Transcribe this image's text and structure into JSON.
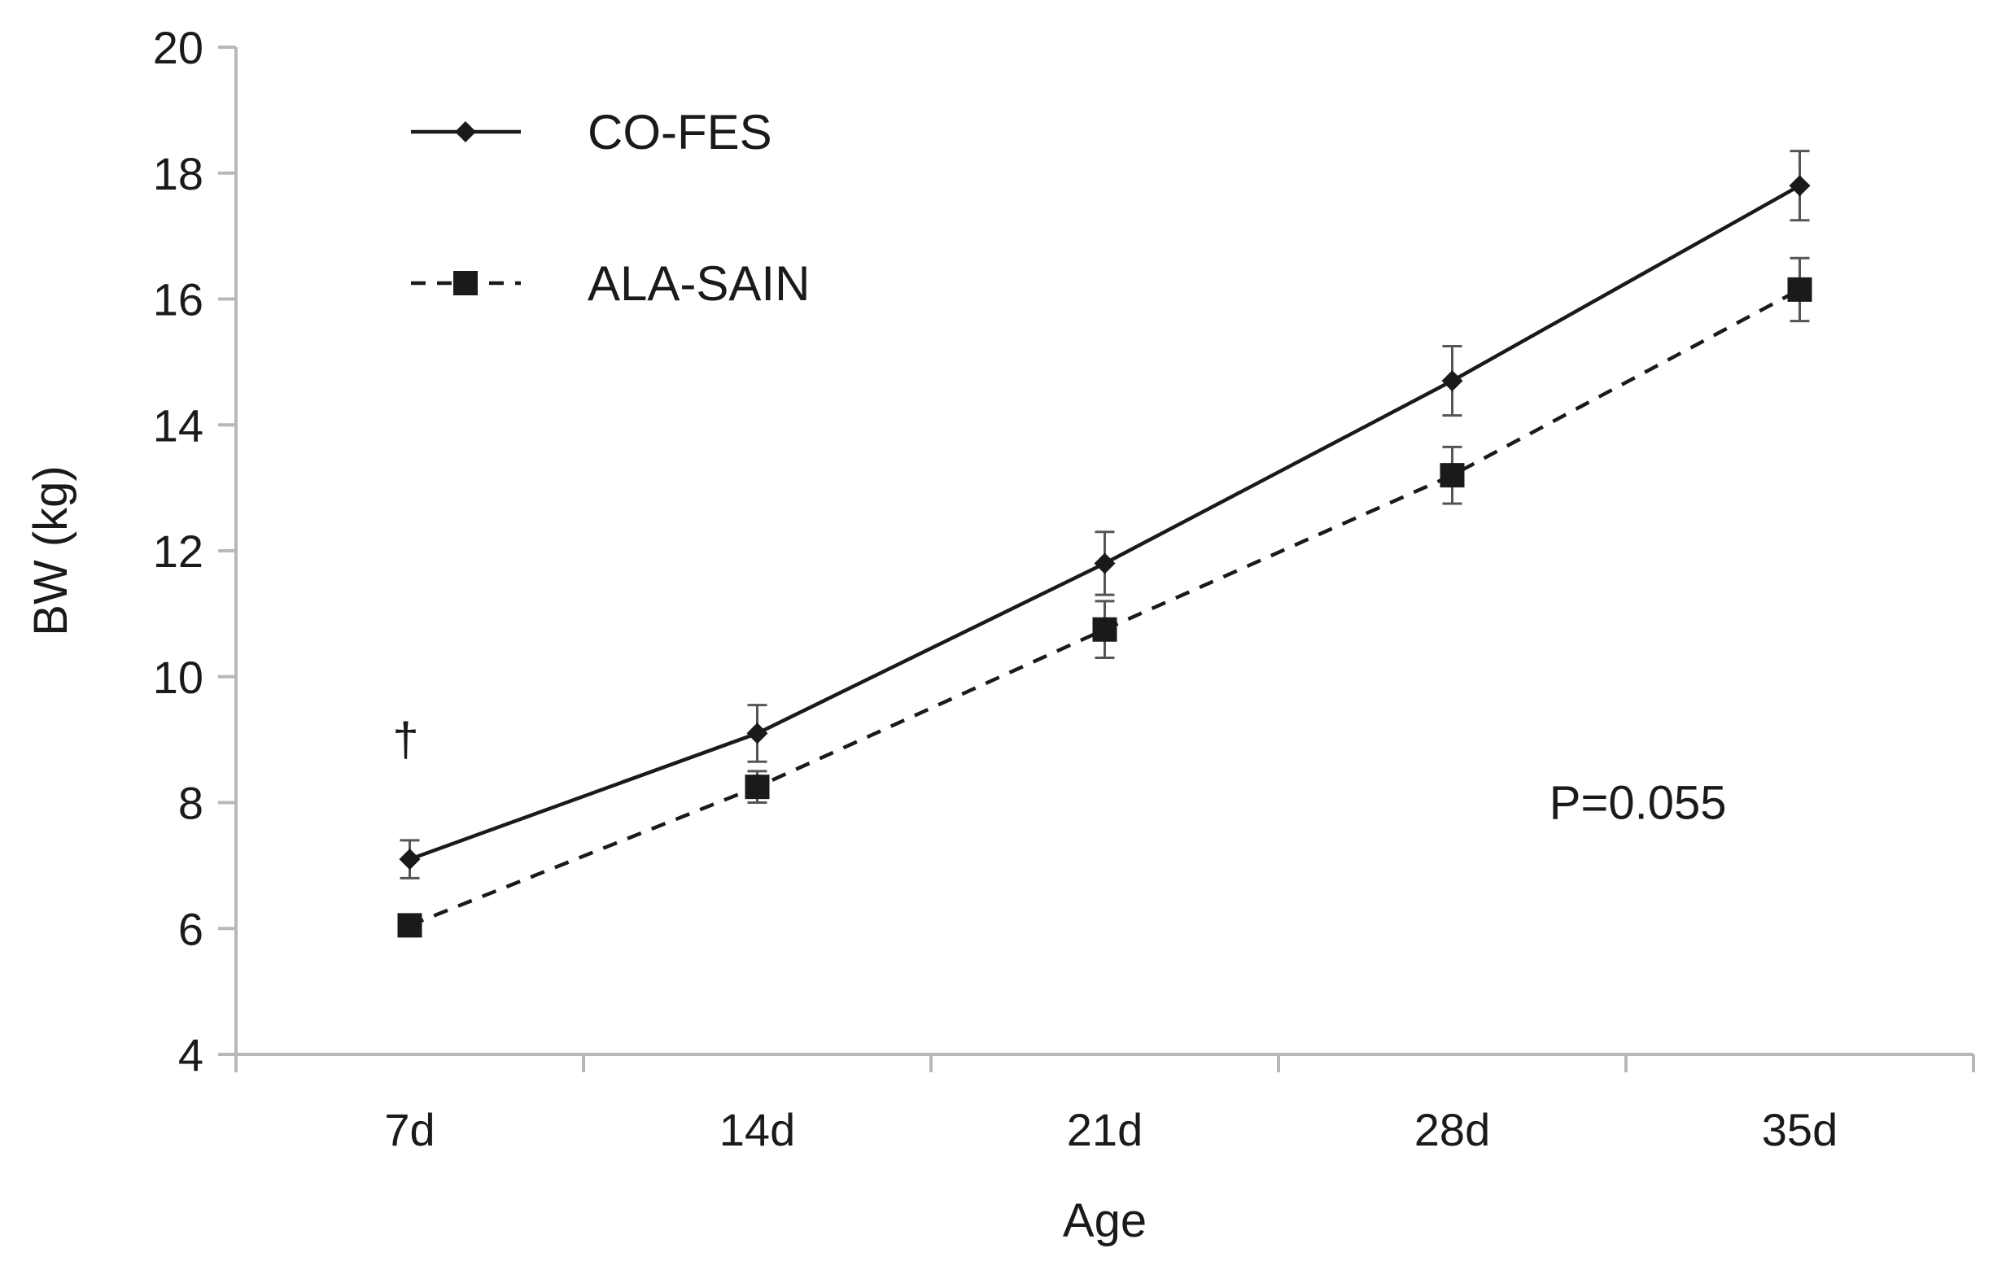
{
  "chart_data": {
    "type": "line",
    "categories": [
      "7d",
      "14d",
      "21d",
      "28d",
      "35d"
    ],
    "xlabel": "Age",
    "ylabel": "BW (kg)",
    "ylim": [
      4,
      20
    ],
    "yticks": [
      4,
      6,
      8,
      10,
      12,
      14,
      16,
      18,
      20
    ],
    "grid": false,
    "legend_position": "top-left",
    "series": [
      {
        "name": "CO-FES",
        "values": [
          7.1,
          9.1,
          11.8,
          14.7,
          17.8
        ],
        "error": [
          0.3,
          0.45,
          0.5,
          0.55,
          0.55
        ],
        "line_style": "solid",
        "marker": "diamond",
        "color": "#1a1a1a"
      },
      {
        "name": "ALA-SAIN",
        "values": [
          6.05,
          8.25,
          10.75,
          13.2,
          16.15
        ],
        "error": [
          0.15,
          0.25,
          0.45,
          0.45,
          0.5
        ],
        "line_style": "dashed",
        "marker": "square",
        "color": "#1a1a1a"
      }
    ],
    "annotations": [
      {
        "text": "†",
        "category": "7d",
        "y": 9.0
      },
      {
        "text": "P=0.055",
        "category": "35d",
        "y": 8.0
      }
    ]
  }
}
